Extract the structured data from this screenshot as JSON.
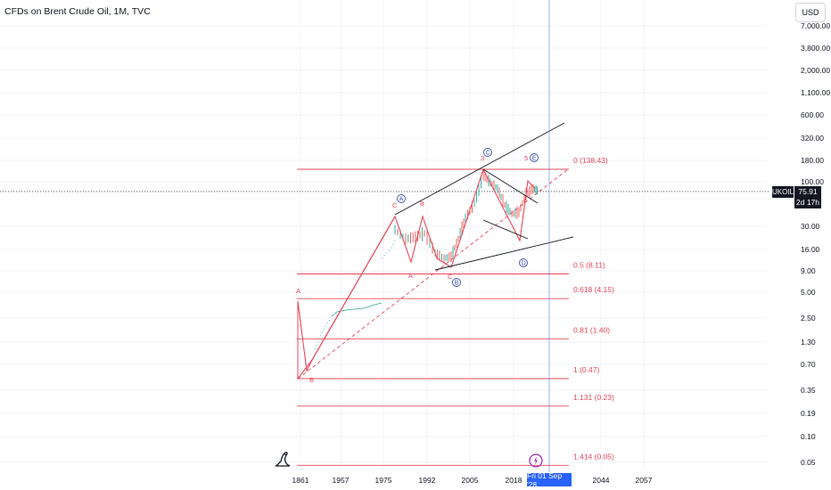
{
  "header": {
    "title": "CFDs on Brent Crude Oil, 1M, TVC",
    "currency_button": "USD"
  },
  "price_scale": [
    "7,000.00",
    "3,800.00",
    "2,000.00",
    "1,100.00",
    "600.00",
    "320.00",
    "180.00",
    "100.00",
    "30.00",
    "16.00",
    "9.00",
    "5.00",
    "2.50",
    "1.30",
    "0.70",
    "0.35",
    "0.19",
    "0.10",
    "0.05"
  ],
  "time_scale": [
    "1861",
    "1957",
    "1975",
    "1992",
    "2005",
    "2018",
    "2044",
    "2057"
  ],
  "last_price": {
    "ticker": "UKOIL",
    "price": "75.91",
    "countdown": "2d 17h"
  },
  "crosshair_date": "Fri 01 Sep '28",
  "icons": {
    "logo": "tradingview-logo-icon",
    "alert": "alert-icon"
  },
  "colors": {
    "fib": "#e8485a",
    "trend": "#131722",
    "wave_circle": "#3f51b5",
    "crosshair": "#2962ff",
    "candles": "#26a69a"
  },
  "chart_data": {
    "type": "line",
    "title": "CFDs on Brent Crude Oil, 1M, TVC",
    "y_scale": "log",
    "ylim": [
      0.05,
      7000
    ],
    "x_range": [
      "1861",
      "2057"
    ],
    "fib_levels": [
      {
        "label": "0 (138.43)",
        "ratio": 0,
        "value": 138.43
      },
      {
        "label": "0.5 (8.11)",
        "ratio": 0.5,
        "value": 8.11
      },
      {
        "label": "0.618 (4.15)",
        "ratio": 0.618,
        "value": 4.15
      },
      {
        "label": "0.81 (1.40)",
        "ratio": 0.81,
        "value": 1.4
      },
      {
        "label": "1 (0.47)",
        "ratio": 1,
        "value": 0.47
      },
      {
        "label": "1.131 (0.23)",
        "ratio": 1.131,
        "value": 0.23
      },
      {
        "label": "1.414 (0.05)",
        "ratio": 1.414,
        "value": 0.05
      }
    ],
    "wave_labels": {
      "plain": [
        "A",
        "B",
        "C",
        "A",
        "B",
        "C",
        "3",
        "5"
      ],
      "circled": [
        "A",
        "B",
        "C",
        "D",
        "E"
      ]
    },
    "last_price": 75.91
  }
}
